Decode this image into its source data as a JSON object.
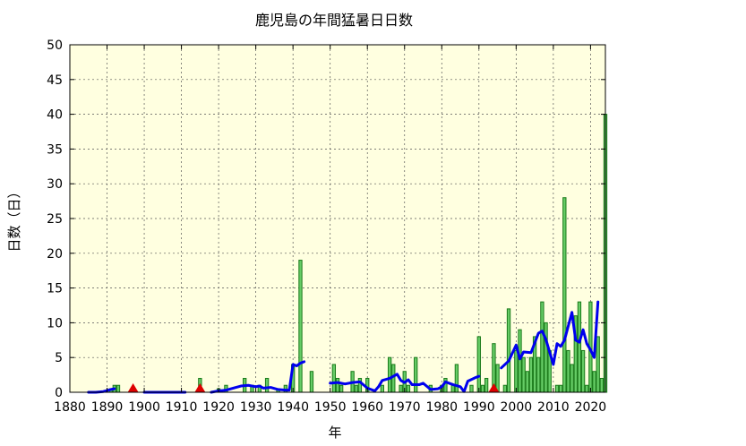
{
  "chart_data": {
    "type": "bar",
    "title": "鹿児島の年間猛暑日日数",
    "xlabel": "年",
    "ylabel": "日数（日）",
    "xlim": [
      1880,
      2024
    ],
    "ylim": [
      0,
      50
    ],
    "x_ticks": [
      1880,
      1890,
      1900,
      1910,
      1920,
      1930,
      1940,
      1950,
      1960,
      1970,
      1980,
      1990,
      2000,
      2010,
      2020
    ],
    "y_ticks": [
      0,
      5,
      10,
      15,
      20,
      25,
      30,
      35,
      40,
      45,
      50
    ],
    "grid": true,
    "colors": {
      "background": "#ffffe0",
      "bar_fill": "#66cc66",
      "bar_edge": "#1a7a1a",
      "moving_average": "#0000ee",
      "marker": "#dd0000"
    },
    "series": [
      {
        "kind": "bar",
        "points": [
          [
            1891,
            0.5
          ],
          [
            1892,
            1
          ],
          [
            1893,
            1
          ],
          [
            1915,
            2
          ],
          [
            1920,
            0.5
          ],
          [
            1922,
            1
          ],
          [
            1927,
            2
          ],
          [
            1929,
            1
          ],
          [
            1931,
            1
          ],
          [
            1933,
            2
          ],
          [
            1936,
            0.5
          ],
          [
            1938,
            1
          ],
          [
            1940,
            4
          ],
          [
            1942,
            19
          ],
          [
            1945,
            3
          ],
          [
            1951,
            4
          ],
          [
            1952,
            2
          ],
          [
            1953,
            1
          ],
          [
            1956,
            3
          ],
          [
            1957,
            1
          ],
          [
            1958,
            2
          ],
          [
            1960,
            2
          ],
          [
            1964,
            1
          ],
          [
            1966,
            5
          ],
          [
            1967,
            4
          ],
          [
            1969,
            1
          ],
          [
            1970,
            3
          ],
          [
            1971,
            1
          ],
          [
            1973,
            5
          ],
          [
            1977,
            1
          ],
          [
            1980,
            1
          ],
          [
            1981,
            2
          ],
          [
            1983,
            1
          ],
          [
            1984,
            4
          ],
          [
            1988,
            1
          ],
          [
            1990,
            8
          ],
          [
            1991,
            1
          ],
          [
            1992,
            2
          ],
          [
            1994,
            7
          ],
          [
            1995,
            4
          ],
          [
            1997,
            1
          ],
          [
            1998,
            12
          ],
          [
            2000,
            6
          ],
          [
            2001,
            9
          ],
          [
            2002,
            5
          ],
          [
            2003,
            3
          ],
          [
            2004,
            5
          ],
          [
            2005,
            8
          ],
          [
            2006,
            5
          ],
          [
            2007,
            13
          ],
          [
            2008,
            10
          ],
          [
            2009,
            6
          ],
          [
            2011,
            1
          ],
          [
            2012,
            1
          ],
          [
            2013,
            28
          ],
          [
            2014,
            6
          ],
          [
            2015,
            4
          ],
          [
            2016,
            11
          ],
          [
            2017,
            13
          ],
          [
            2018,
            6
          ],
          [
            2019,
            1
          ],
          [
            2020,
            13
          ],
          [
            2021,
            3
          ],
          [
            2022,
            8
          ],
          [
            2023,
            2
          ],
          [
            2024,
            40
          ]
        ]
      },
      {
        "kind": "line",
        "segments": [
          [
            [
              1885,
              0
            ],
            [
              1887,
              0
            ],
            [
              1889,
              0.1
            ],
            [
              1891,
              0.4
            ],
            [
              1892,
              0.5
            ]
          ],
          [
            [
              1900,
              0
            ],
            [
              1905,
              0
            ],
            [
              1910,
              0
            ],
            [
              1911,
              0
            ]
          ],
          [
            [
              1918,
              0
            ],
            [
              1920,
              0.2
            ],
            [
              1922,
              0.3
            ],
            [
              1924,
              0.6
            ],
            [
              1926,
              0.9
            ],
            [
              1928,
              1
            ],
            [
              1930,
              0.8
            ],
            [
              1931,
              0.9
            ],
            [
              1932,
              0.6
            ],
            [
              1934,
              0.7
            ],
            [
              1936,
              0.4
            ],
            [
              1938,
              0.3
            ],
            [
              1939,
              0.3
            ],
            [
              1940,
              4
            ],
            [
              1941,
              3.8
            ],
            [
              1942,
              4.2
            ],
            [
              1943,
              4.4
            ]
          ],
          [
            [
              1950,
              1.3
            ],
            [
              1952,
              1.4
            ],
            [
              1954,
              1.2
            ],
            [
              1956,
              1.4
            ],
            [
              1958,
              1.5
            ],
            [
              1960,
              0.6
            ],
            [
              1962,
              0.2
            ],
            [
              1963,
              0.8
            ],
            [
              1964,
              1.7
            ],
            [
              1966,
              2
            ],
            [
              1968,
              2.6
            ],
            [
              1969,
              1.7
            ],
            [
              1970,
              1.4
            ],
            [
              1971,
              1.8
            ],
            [
              1972,
              1.1
            ],
            [
              1974,
              1.1
            ],
            [
              1975,
              1.3
            ],
            [
              1977,
              0.4
            ],
            [
              1979,
              0.5
            ],
            [
              1980,
              0.8
            ],
            [
              1981,
              1.5
            ],
            [
              1982,
              1.3
            ],
            [
              1983,
              1.1
            ],
            [
              1985,
              0.8
            ],
            [
              1986,
              0.1
            ],
            [
              1987,
              1.6
            ],
            [
              1989,
              2.1
            ],
            [
              1990,
              2.3
            ]
          ],
          [
            [
              1996,
              3.5
            ],
            [
              1998,
              4.5
            ],
            [
              2000,
              6.8
            ],
            [
              2001,
              4.8
            ],
            [
              2002,
              5.8
            ],
            [
              2004,
              5.7
            ],
            [
              2006,
              8.5
            ],
            [
              2007,
              8.8
            ],
            [
              2008,
              7.6
            ],
            [
              2010,
              4
            ],
            [
              2011,
              7
            ],
            [
              2012,
              6.6
            ],
            [
              2013,
              7.5
            ],
            [
              2015,
              11.5
            ],
            [
              2016,
              7.5
            ],
            [
              2017,
              7.2
            ],
            [
              2018,
              9
            ],
            [
              2019,
              7
            ],
            [
              2020,
              6.1
            ],
            [
              2021,
              5
            ],
            [
              2022,
              13
            ]
          ]
        ]
      }
    ],
    "markers": [
      {
        "x": 1897,
        "y": 0
      },
      {
        "x": 1915,
        "y": 0
      },
      {
        "x": 1994,
        "y": 0
      }
    ]
  }
}
